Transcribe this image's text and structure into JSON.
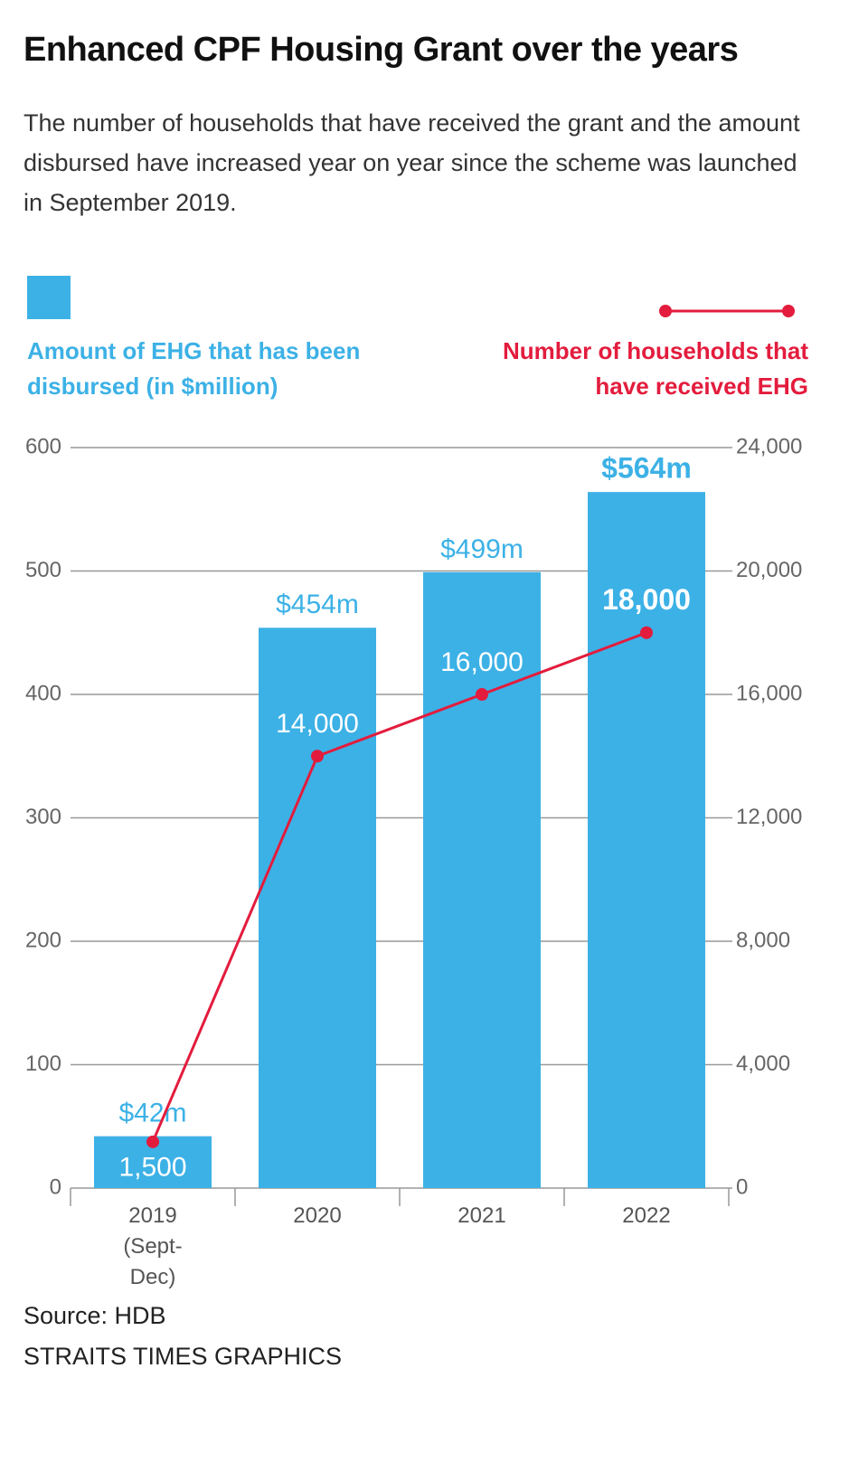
{
  "chart_data": {
    "type": "bar-line",
    "title": "Enhanced CPF Housing Grant over the years",
    "subtitle": "The number of households that have received the grant and the amount disbursed have increased year on year since the scheme was launched in September 2019.",
    "categories": [
      "2019 (Sept-Dec)",
      "2020",
      "2021",
      "2022"
    ],
    "series": [
      {
        "name": "Amount of EHG that has been disbursed (in $million)",
        "type": "bar",
        "color": "#3cb1e6",
        "values": [
          42,
          454,
          499,
          564
        ],
        "value_labels": [
          "$42m",
          "$454m",
          "$499m",
          "$564m"
        ]
      },
      {
        "name": "Number of households that have received EHG",
        "type": "line",
        "axis": "y2",
        "color": "#e31c3d",
        "values": [
          1500,
          14000,
          16000,
          18000
        ],
        "value_labels": [
          "1,500",
          "14,000",
          "16,000",
          "18,000"
        ]
      }
    ],
    "ylim": [
      0,
      600
    ],
    "yticks": [
      0,
      100,
      200,
      300,
      400,
      500,
      600
    ],
    "y2lim": [
      0,
      24000
    ],
    "y2ticks": [
      0,
      {
        "value": 4000,
        "label": "4,000"
      },
      {
        "value": 8000,
        "label": "8,000"
      },
      {
        "value": 12000,
        "label": "12,000"
      },
      {
        "value": 16000,
        "label": "16,000"
      },
      {
        "value": 20000,
        "label": "20,000"
      },
      {
        "value": 24000,
        "label": "24,000"
      }
    ],
    "grid": true,
    "source": "Source: HDB",
    "credit": "STRAITS TIMES GRAPHICS"
  }
}
